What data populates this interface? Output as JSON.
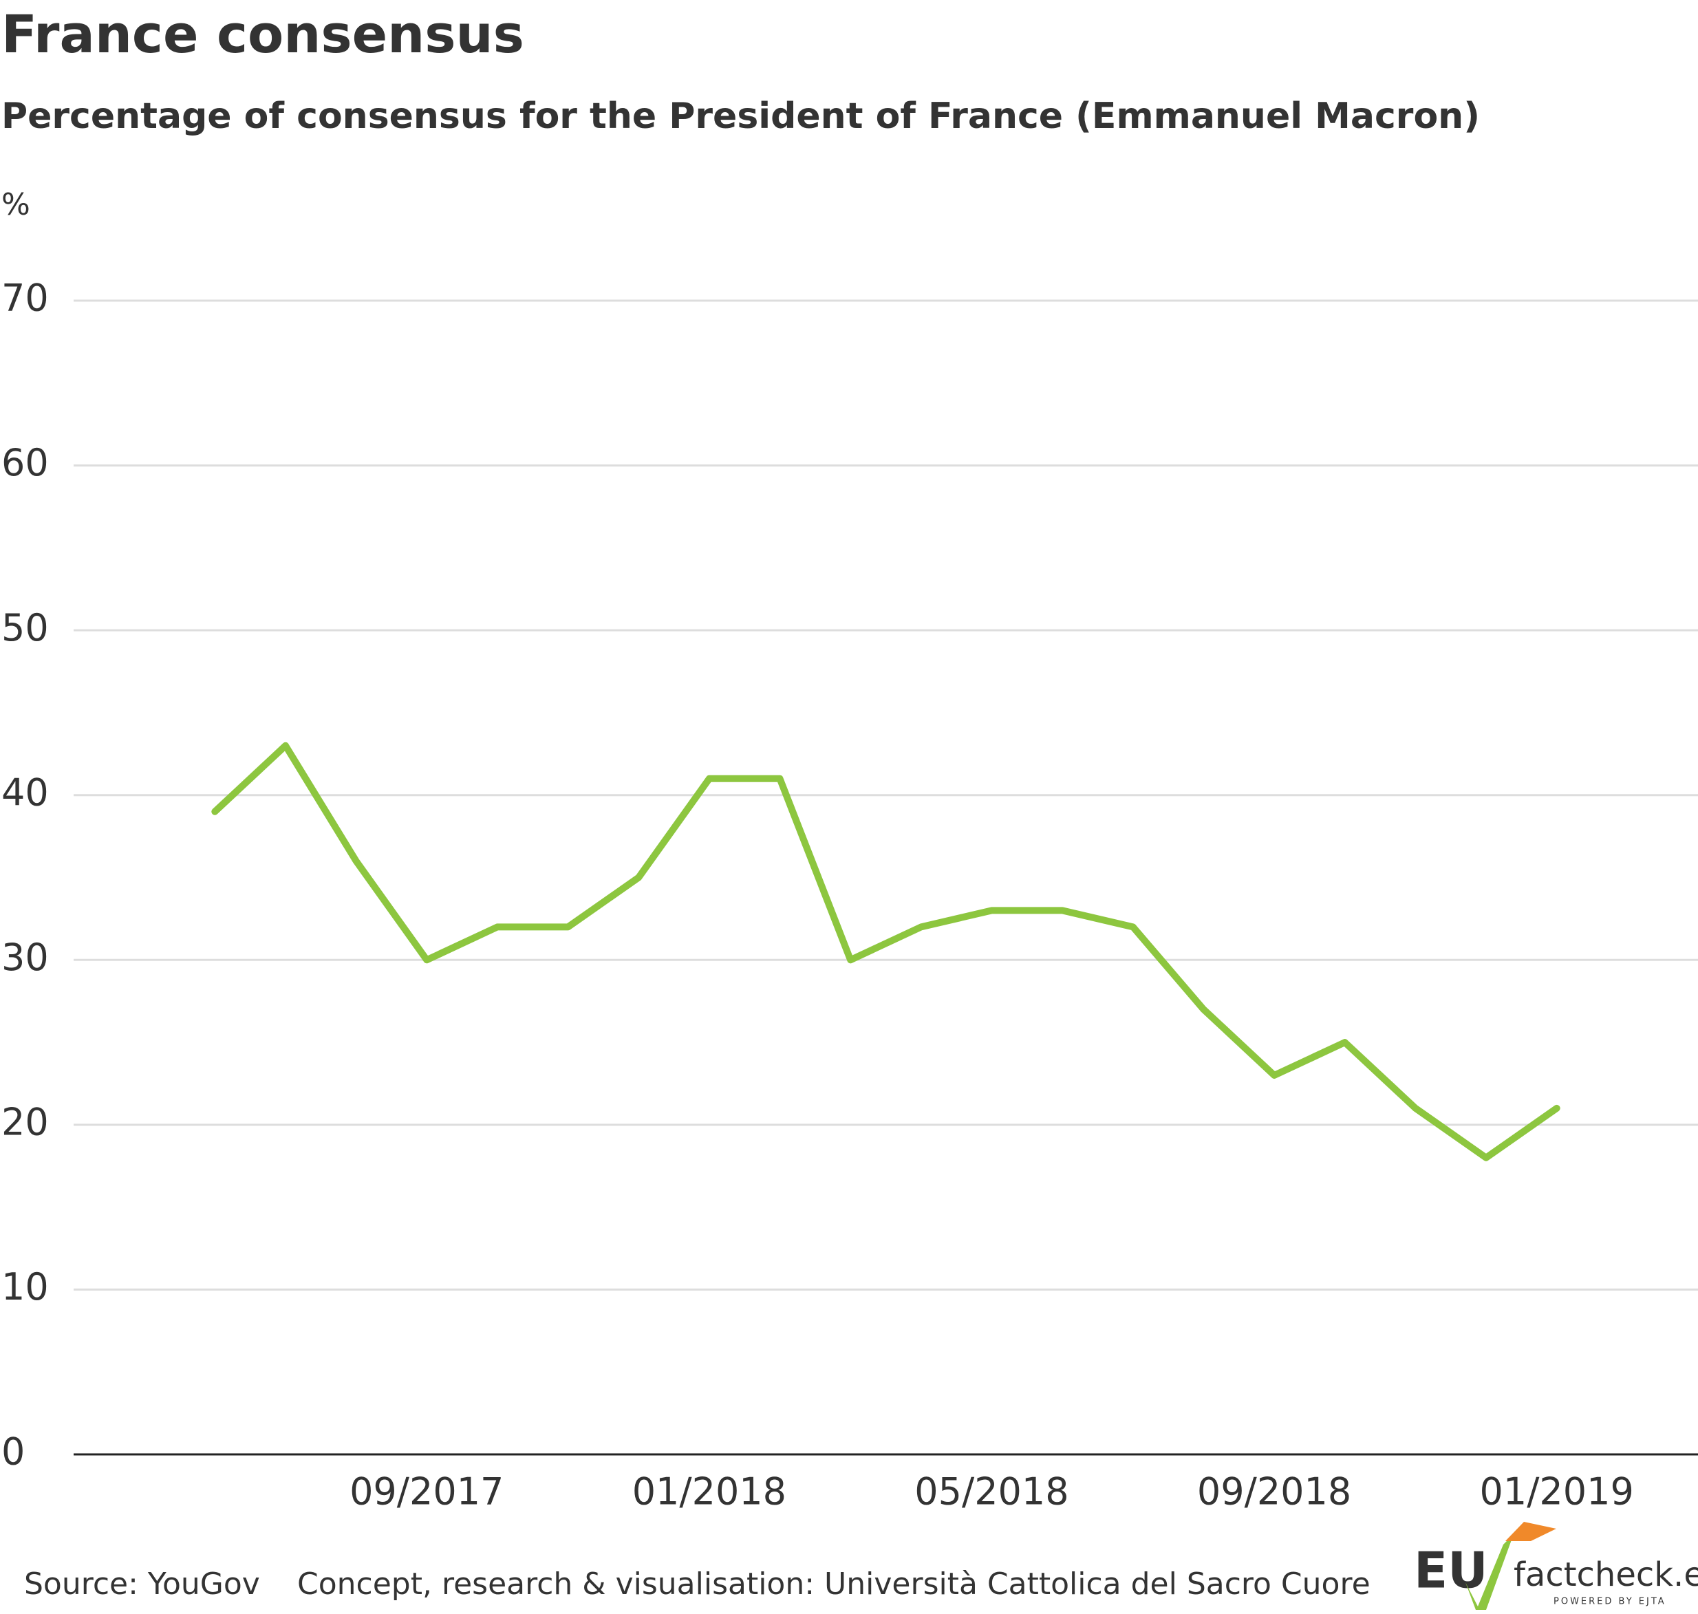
{
  "chart_data": {
    "type": "line",
    "title": "France consensus",
    "subtitle": "Percentage of consensus for the President of France (Emmanuel Macron)",
    "y_label": "%",
    "x": [
      "06/2017",
      "07/2017",
      "08/2017",
      "09/2017",
      "10/2017",
      "11/2017",
      "12/2017",
      "01/2018",
      "02/2018",
      "03/2018",
      "04/2018",
      "05/2018",
      "06/2018",
      "07/2018",
      "08/2018",
      "09/2018",
      "10/2018",
      "11/2018",
      "12/2018",
      "01/2019"
    ],
    "series": [
      {
        "name": "Consensus",
        "color": "#8dc63f",
        "values": [
          39,
          43,
          36,
          30,
          32,
          32,
          35,
          41,
          41,
          30,
          32,
          33,
          33,
          32,
          27,
          23,
          25,
          21,
          18,
          21
        ]
      }
    ],
    "xlim": [
      "04/2017",
      "03/2019"
    ],
    "xticks": [
      "09/2017",
      "01/2018",
      "05/2018",
      "09/2018",
      "01/2019"
    ],
    "ylim": [
      0,
      70
    ],
    "yticks": [
      0,
      10,
      20,
      30,
      40,
      50,
      60,
      70
    ],
    "grid": true
  },
  "footer": {
    "source": "Source: YouGov",
    "credit": "Concept, research & visualisation: Università Cattolica del Sacro Cuore",
    "logo_eu": "EU",
    "logo_site": "factcheck.eu",
    "logo_tagline": "POWERED BY EJTA"
  }
}
